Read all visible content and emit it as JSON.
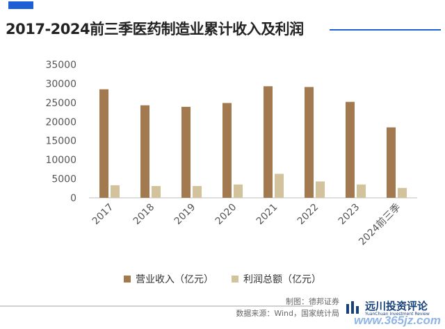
{
  "title": "2017-2024前三季医药制造业累计收入及利润",
  "colors": {
    "accent": "#1f5fd6",
    "revenue": "#a37a50",
    "profit": "#d2c39c"
  },
  "chart_data": {
    "type": "bar",
    "title": "2017-2024前三季医药制造业累计收入及利润",
    "categories": [
      "2017",
      "2018",
      "2019",
      "2020",
      "2021",
      "2022",
      "2023",
      "2024前三季"
    ],
    "series": [
      {
        "name": "营业收入（亿元）",
        "values": [
          28500,
          24300,
          23900,
          24900,
          29300,
          29100,
          25200,
          18500
        ]
      },
      {
        "name": "利润总额（亿元）",
        "values": [
          3300,
          3100,
          3100,
          3500,
          6300,
          4300,
          3500,
          2600
        ]
      }
    ],
    "ylim": [
      0,
      35000
    ],
    "yticks": [
      "0",
      "5000",
      "10000",
      "15000",
      "20000",
      "25000",
      "30000",
      "35000"
    ],
    "xlabel": "",
    "ylabel": "",
    "grid": false,
    "legend_position": "bottom"
  },
  "source": {
    "made_by": "制图：德邦证券",
    "data_source": "数据来源：Wind，国家统计局"
  },
  "logo": {
    "name_cn": "远川投资评论",
    "name_en": "YuanChuan Investment Review"
  },
  "watermark": "www.365jz.com"
}
